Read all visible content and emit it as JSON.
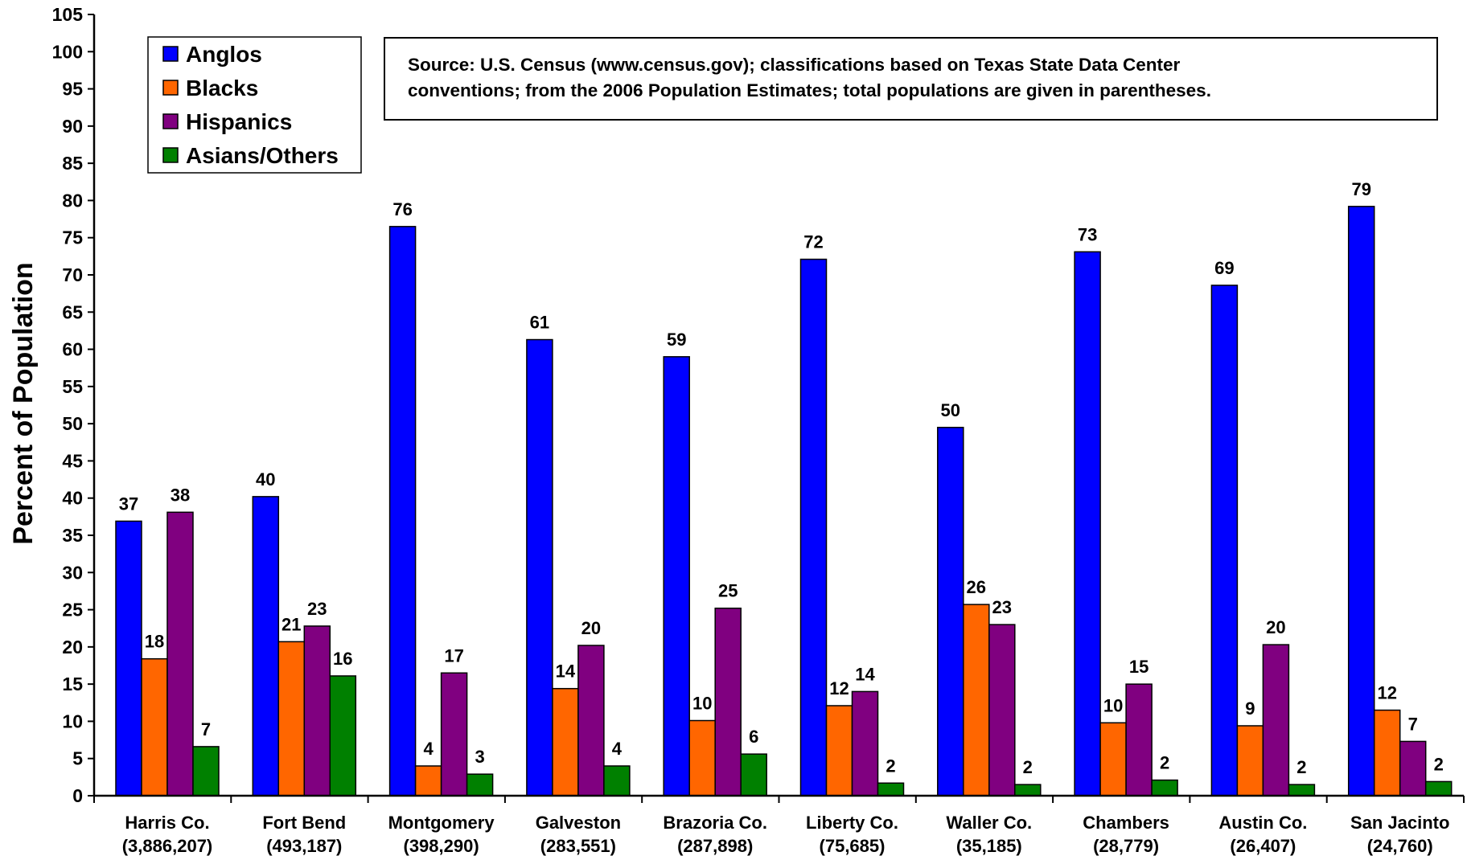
{
  "chart_data": {
    "type": "bar",
    "ylabel": "Percent of Population",
    "ylim": [
      0,
      105
    ],
    "ytick_step": 5,
    "ytick_labels": [
      "0",
      "5",
      "10",
      "15",
      "20",
      "25",
      "30",
      "35",
      "40",
      "45",
      "50",
      "55",
      "60",
      "65",
      "70",
      "75",
      "80",
      "85",
      "90",
      "95",
      "100",
      "105"
    ],
    "legend_position": "top-left",
    "categories": [
      {
        "name": "Harris Co.",
        "population": "(3,886,207)"
      },
      {
        "name": "Fort Bend",
        "population": "(493,187)"
      },
      {
        "name": "Montgomery",
        "population": "(398,290)"
      },
      {
        "name": "Galveston",
        "population": "(283,551)"
      },
      {
        "name": "Brazoria Co.",
        "population": "(287,898)"
      },
      {
        "name": "Liberty Co.",
        "population": "(75,685)"
      },
      {
        "name": "Waller Co.",
        "population": "(35,185)"
      },
      {
        "name": "Chambers",
        "population": "(28,779)"
      },
      {
        "name": "Austin Co.",
        "population": "(26,407)"
      },
      {
        "name": "San Jacinto",
        "population": "(24,760)"
      }
    ],
    "series": [
      {
        "name": "Anglos",
        "color": "#0000ff",
        "values": [
          36.9,
          40.2,
          76.5,
          61.3,
          59.0,
          72.1,
          49.5,
          73.1,
          68.6,
          79.2
        ],
        "labels": [
          "37",
          "40",
          "76",
          "61",
          "59",
          "72",
          "50",
          "73",
          "69",
          "79"
        ]
      },
      {
        "name": "Blacks",
        "color": "#ff6600",
        "values": [
          18.4,
          20.7,
          4.0,
          14.4,
          10.1,
          12.1,
          25.7,
          9.8,
          9.4,
          11.5
        ],
        "labels": [
          "18",
          "21",
          "4",
          "14",
          "10",
          "12",
          "26",
          "10",
          "9",
          "12"
        ]
      },
      {
        "name": "Hispanics",
        "color": "#800080",
        "values": [
          38.1,
          22.8,
          16.5,
          20.2,
          25.2,
          14.0,
          23.0,
          15.0,
          20.3,
          7.3
        ],
        "labels": [
          "38",
          "23",
          "17",
          "20",
          "25",
          "14",
          "23",
          "15",
          "20",
          "7"
        ]
      },
      {
        "name": "Asians/Others",
        "color": "#008000",
        "values": [
          6.6,
          16.1,
          2.9,
          4.0,
          5.6,
          1.7,
          1.5,
          2.1,
          1.5,
          1.9
        ],
        "labels": [
          "7",
          "16",
          "3",
          "4",
          "6",
          "2",
          "2",
          "2",
          "2",
          "2"
        ]
      }
    ],
    "annotation": {
      "line1": "Source: U.S. Census (www.census.gov); classifications based on Texas State Data Center",
      "line2": "conventions;  from the 2006  Population Estimates; total populations are given in parentheses."
    }
  }
}
